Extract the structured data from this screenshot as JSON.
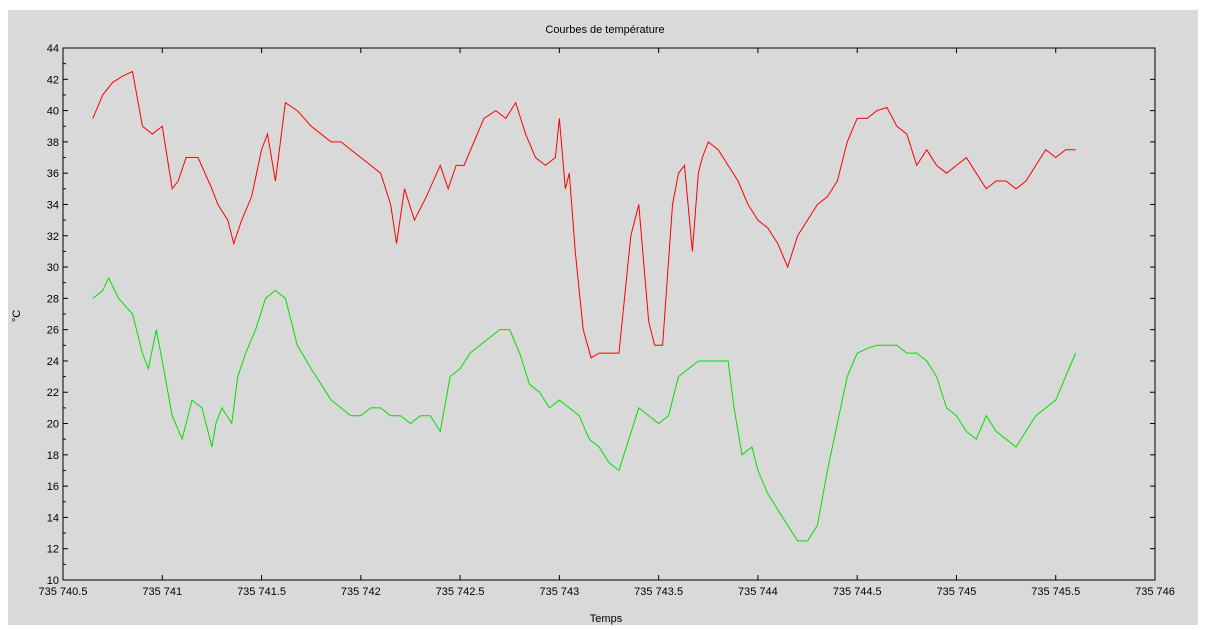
{
  "chart_data": {
    "type": "line",
    "title": "Courbes de température",
    "xlabel": "Temps",
    "ylabel": "°C",
    "xlim": [
      735740.5,
      735746
    ],
    "ylim": [
      10,
      44
    ],
    "x_ticks": [
      735740.5,
      735741,
      735741.5,
      735742,
      735742.5,
      735743,
      735743.5,
      735744,
      735744.5,
      735745,
      735745.5,
      735746
    ],
    "x_tick_labels": [
      "735 740.5",
      "735 741",
      "735 741.5",
      "735 742",
      "735 742.5",
      "735 743",
      "735 743.5",
      "735 744",
      "735 744.5",
      "735 745",
      "735 745.5",
      "735 746"
    ],
    "y_ticks": [
      10,
      12,
      14,
      16,
      18,
      20,
      22,
      24,
      26,
      28,
      30,
      32,
      34,
      36,
      38,
      40,
      42,
      44
    ],
    "y_tick_labels": [
      "10",
      "12",
      "14",
      "16",
      "18",
      "20",
      "22",
      "24",
      "26",
      "28",
      "30",
      "32",
      "34",
      "36",
      "38",
      "40",
      "42",
      "44"
    ],
    "grid": false,
    "legend": "none",
    "background": "#d9d9d9",
    "series": [
      {
        "color": "#ff0000",
        "x": [
          735740.65,
          735740.7,
          735740.75,
          735740.8,
          735740.85,
          735740.9,
          735740.95,
          735741.0,
          735741.05,
          735741.08,
          735741.12,
          735741.18,
          735741.25,
          735741.28,
          735741.33,
          735741.36,
          735741.4,
          735741.45,
          735741.5,
          735741.53,
          735741.57,
          735741.62,
          735741.68,
          735741.75,
          735741.8,
          735741.85,
          735741.9,
          735741.95,
          735742.0,
          735742.05,
          735742.1,
          735742.15,
          735742.18,
          735742.22,
          735742.27,
          735742.33,
          735742.4,
          735742.44,
          735742.48,
          735742.52,
          735742.57,
          735742.62,
          735742.68,
          735742.73,
          735742.78,
          735742.83,
          735742.88,
          735742.93,
          735742.98,
          735743.0,
          735743.03,
          735743.05,
          735743.08,
          735743.12,
          735743.16,
          735743.2,
          735743.25,
          735743.3,
          735743.36,
          735743.4,
          735743.42,
          735743.45,
          735743.48,
          735743.52,
          735743.57,
          735743.6,
          735743.63,
          735743.67,
          735743.7,
          735743.72,
          735743.75,
          735743.8,
          735743.85,
          735743.9,
          735743.95,
          735744.0,
          735744.05,
          735744.1,
          735744.15,
          735744.2,
          735744.25,
          735744.3,
          735744.35,
          735744.4,
          735744.45,
          735744.5,
          735744.55,
          735744.6,
          735744.65,
          735744.7,
          735744.75,
          735744.8,
          735744.85,
          735744.9,
          735744.95,
          735745.0,
          735745.05,
          735745.1,
          735745.15,
          735745.2,
          735745.25,
          735745.3,
          735745.35,
          735745.4,
          735745.45,
          735745.5,
          735745.55,
          735745.6
        ],
        "y": [
          39.5,
          41.0,
          41.8,
          42.2,
          42.5,
          39.0,
          38.5,
          39.0,
          35.0,
          35.5,
          37.0,
          37.0,
          35.0,
          34.0,
          33.0,
          31.5,
          33.0,
          34.5,
          37.5,
          38.5,
          35.5,
          40.5,
          40.0,
          39.0,
          38.5,
          38.0,
          38.0,
          37.5,
          37.0,
          36.5,
          36.0,
          34.0,
          31.5,
          35.0,
          33.0,
          34.5,
          36.5,
          35.0,
          36.5,
          36.5,
          38.0,
          39.5,
          40.0,
          39.5,
          40.5,
          38.5,
          37.0,
          36.5,
          37.0,
          39.5,
          35.0,
          36.0,
          31.0,
          26.0,
          24.2,
          24.5,
          24.5,
          24.5,
          32.0,
          34.0,
          31.0,
          26.5,
          25.0,
          25.0,
          34.0,
          36.0,
          36.5,
          31.0,
          36.0,
          37.0,
          38.0,
          37.5,
          36.5,
          35.5,
          34.0,
          33.0,
          32.5,
          31.5,
          30.0,
          32.0,
          33.0,
          34.0,
          34.5,
          35.5,
          38.0,
          39.5,
          39.5,
          40.0,
          40.2,
          39.0,
          38.5,
          36.5,
          37.5,
          36.5,
          36.0,
          36.5,
          37.0,
          36.0,
          35.0,
          35.5,
          35.5,
          35.0,
          35.5,
          36.5,
          37.5,
          37.0,
          37.5,
          37.5
        ]
      },
      {
        "color": "#00e000",
        "x": [
          735740.65,
          735740.7,
          735740.73,
          735740.78,
          735740.85,
          735740.9,
          735740.93,
          735740.97,
          735741.0,
          735741.05,
          735741.1,
          735741.15,
          735741.2,
          735741.25,
          735741.27,
          735741.3,
          735741.35,
          735741.38,
          735741.42,
          735741.47,
          735741.52,
          735741.57,
          735741.62,
          735741.68,
          735741.75,
          735741.8,
          735741.85,
          735741.9,
          735741.95,
          735742.0,
          735742.05,
          735742.1,
          735742.15,
          735742.2,
          735742.25,
          735742.3,
          735742.35,
          735742.4,
          735742.45,
          735742.5,
          735742.55,
          735742.6,
          735742.65,
          735742.7,
          735742.75,
          735742.8,
          735742.85,
          735742.9,
          735742.95,
          735743.0,
          735743.05,
          735743.1,
          735743.15,
          735743.2,
          735743.25,
          735743.3,
          735743.35,
          735743.4,
          735743.45,
          735743.5,
          735743.55,
          735743.6,
          735743.65,
          735743.7,
          735743.75,
          735743.8,
          735743.85,
          735743.88,
          735743.92,
          735743.97,
          735744.0,
          735744.05,
          735744.1,
          735744.15,
          735744.2,
          735744.25,
          735744.3,
          735744.35,
          735744.4,
          735744.45,
          735744.5,
          735744.55,
          735744.6,
          735744.65,
          735744.7,
          735744.75,
          735744.8,
          735744.85,
          735744.9,
          735744.95,
          735745.0,
          735745.05,
          735745.1,
          735745.15,
          735745.2,
          735745.25,
          735745.3,
          735745.35,
          735745.4,
          735745.45,
          735745.5,
          735745.55,
          735745.6
        ],
        "y": [
          28.0,
          28.5,
          29.3,
          28.0,
          27.0,
          24.5,
          23.5,
          26.0,
          24.0,
          20.5,
          19.0,
          21.5,
          21.0,
          18.5,
          20.0,
          21.0,
          20.0,
          23.0,
          24.5,
          26.0,
          28.0,
          28.5,
          28.0,
          25.0,
          23.5,
          22.5,
          21.5,
          21.0,
          20.5,
          20.5,
          21.0,
          21.0,
          20.5,
          20.5,
          20.0,
          20.5,
          20.5,
          19.5,
          23.0,
          23.5,
          24.5,
          25.0,
          25.5,
          26.0,
          26.0,
          24.5,
          22.5,
          22.0,
          21.0,
          21.5,
          21.0,
          20.5,
          19.0,
          18.5,
          17.5,
          17.0,
          19.0,
          21.0,
          20.5,
          20.0,
          20.5,
          23.0,
          23.5,
          24.0,
          24.0,
          24.0,
          24.0,
          21.0,
          18.0,
          18.5,
          17.0,
          15.5,
          14.5,
          13.5,
          12.5,
          12.5,
          13.5,
          17.0,
          20.0,
          23.0,
          24.5,
          24.8,
          25.0,
          25.0,
          25.0,
          24.5,
          24.5,
          24.0,
          23.0,
          21.0,
          20.5,
          19.5,
          19.0,
          20.5,
          19.5,
          19.0,
          18.5,
          19.5,
          20.5,
          21.0,
          21.5,
          23.0,
          24.5
        ]
      }
    ]
  }
}
